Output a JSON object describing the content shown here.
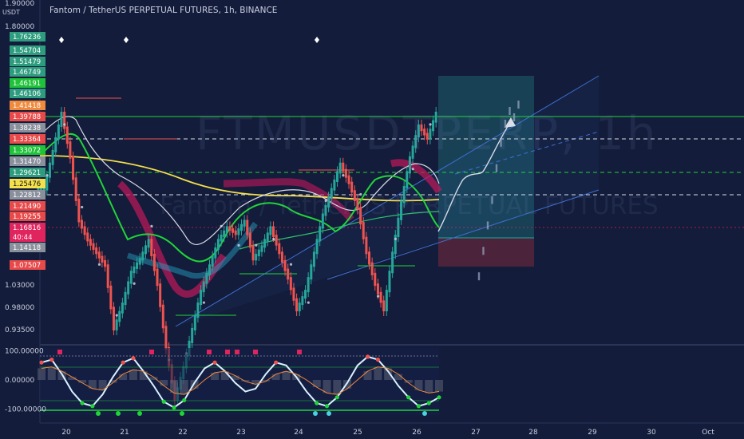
{
  "title": "Fantom / TetherUS PERPETUAL FUTURES, 1h, BINANCE",
  "watermark": "FTMUSDTPERP, 1h",
  "watermark_sub": "Fantom / TetherUS PERPETUAL FUTURES",
  "currency_label": "USDT",
  "colors": {
    "background": "#131c3a",
    "up": "#26a69a",
    "down": "#ef5350",
    "channel": "#3f6fd1",
    "green_line": "#20d43a",
    "yellow_line": "#f4e04d",
    "white_line": "#d9dde8",
    "magenta_band": "#c2185b"
  },
  "chart_data": [
    {
      "type": "candlestick",
      "title": "Fantom / TetherUS PERPETUAL FUTURES, 1h, BINANCE",
      "x_ticks": [
        "20",
        "21",
        "22",
        "23",
        "24",
        "25",
        "26",
        "27",
        "28",
        "29",
        "30",
        "Oct"
      ],
      "y_ticks": [
        1.9,
        1.8,
        1.03,
        0.98,
        0.935
      ],
      "y_tick_labels": [
        "1.90000",
        "1.80000",
        "1.03000",
        "0.98000",
        "0.93500"
      ],
      "ylim": [
        0.91,
        1.9
      ],
      "price_badges": [
        {
          "label": "1.76236",
          "value": 1.76236,
          "color": "#2e9c7e"
        },
        {
          "label": "1.54704",
          "value": 1.54704,
          "color": "#2e9c7e"
        },
        {
          "label": "1.51479",
          "value": 1.51479,
          "color": "#2e9c7e"
        },
        {
          "label": "1.46749",
          "value": 1.46749,
          "color": "#2e9c7e"
        },
        {
          "label": "1.46191",
          "value": 1.46191,
          "color": "#20c23a"
        },
        {
          "label": "1.46106",
          "value": 1.46106,
          "color": "#2e9c7e"
        },
        {
          "label": "1.41418",
          "value": 1.41418,
          "color": "#f08a3c"
        },
        {
          "label": "1.39788",
          "value": 1.39788,
          "color": "#e84a4a"
        },
        {
          "label": "1.38238",
          "value": 1.38238,
          "color": "#8a8f9c"
        },
        {
          "label": "1.33364",
          "value": 1.33364,
          "color": "#e84a4a"
        },
        {
          "label": "1.33072",
          "value": 1.33072,
          "color": "#20c23a"
        },
        {
          "label": "1.31470",
          "value": 1.3147,
          "color": "#8a8f9c"
        },
        {
          "label": "1.29621",
          "value": 1.29621,
          "color": "#2e9c7e"
        },
        {
          "label": "1.25476",
          "value": 1.25476,
          "color": "#f4e04d"
        },
        {
          "label": "1.22812",
          "value": 1.22812,
          "color": "#8a8f9c"
        },
        {
          "label": "1.21490",
          "value": 1.2149,
          "color": "#e84a4a"
        },
        {
          "label": "1.19255",
          "value": 1.19255,
          "color": "#e84a4a"
        },
        {
          "label": "1.16816",
          "value": 1.16816,
          "color": "#e0245e"
        },
        {
          "label": "40:44",
          "value": 1.152,
          "color": "#e0245e"
        },
        {
          "label": "1.14118",
          "value": 1.14118,
          "color": "#8a8f9c"
        },
        {
          "label": "1.07507",
          "value": 1.07507,
          "color": "#e84a4a"
        }
      ],
      "levels": [
        {
          "value": 1.39788,
          "style": "solid",
          "color": "#20d43a"
        },
        {
          "value": 1.33364,
          "style": "dashed",
          "color": "#d9dde8"
        },
        {
          "value": 1.29621,
          "style": "dashed",
          "color": "#20d43a"
        },
        {
          "value": 1.22812,
          "style": "dashed",
          "color": "#d9dde8"
        },
        {
          "value": 1.16816,
          "style": "dotted",
          "color": "#e0245e"
        }
      ],
      "series": [
        {
          "name": "",
          "values": [
            1.3,
            1.36,
            1.42,
            1.35,
            1.25,
            1.22,
            1.2,
            1.18,
            1.08,
            1.12,
            1.17,
            1.19,
            1.22,
            1.15,
            1.05,
            0.97,
            1.02,
            1.08,
            1.14,
            1.18,
            1.22,
            1.24,
            1.23,
            1.25,
            1.19,
            1.21,
            1.24,
            1.2,
            1.16,
            1.11,
            1.14,
            1.2,
            1.26,
            1.3,
            1.34,
            1.31,
            1.27,
            1.2,
            1.15,
            1.11,
            1.2,
            1.28,
            1.35,
            1.4,
            1.38,
            1.42
          ]
        }
      ]
    },
    {
      "type": "line",
      "title": "",
      "y_ticks": [
        100,
        0,
        -100
      ],
      "y_tick_labels": [
        "100.00000",
        "0.00000",
        "-100.00000"
      ],
      "ylim": [
        -110,
        110
      ],
      "series": [
        {
          "name": "",
          "values": [
            60,
            70,
            20,
            -40,
            -80,
            -90,
            -50,
            10,
            60,
            75,
            30,
            -20,
            -75,
            -95,
            -70,
            -10,
            40,
            60,
            30,
            -10,
            -40,
            -30,
            20,
            60,
            50,
            10,
            -40,
            -80,
            -90,
            -60,
            -10,
            50,
            80,
            70,
            30,
            -20,
            -60,
            -90,
            -80,
            -60
          ]
        },
        {
          "name": "",
          "values": [
            40,
            45,
            30,
            10,
            -10,
            -30,
            -35,
            -10,
            20,
            35,
            30,
            10,
            -20,
            -45,
            -50,
            -30,
            0,
            25,
            30,
            15,
            -5,
            -15,
            -5,
            20,
            30,
            20,
            0,
            -25,
            -45,
            -50,
            -30,
            0,
            30,
            45,
            40,
            20,
            -10,
            -35,
            -45,
            -40
          ]
        }
      ]
    }
  ]
}
